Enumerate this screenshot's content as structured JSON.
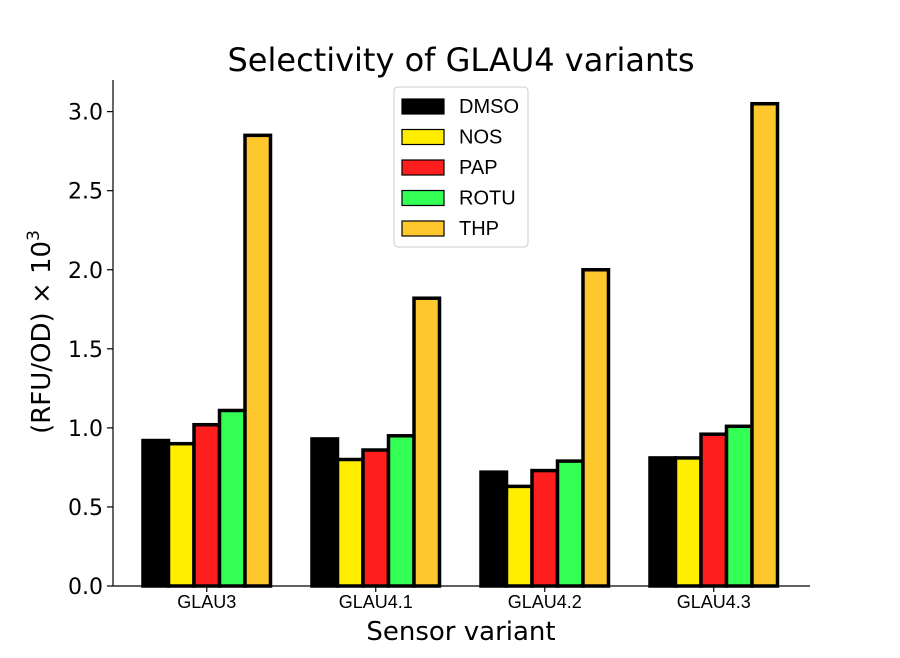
{
  "chart_data": {
    "type": "bar",
    "title": "Selectivity of GLAU4 variants",
    "xlabel": "Sensor variant",
    "ylabel": "(RFU/OD) × 10³",
    "ylabel_parts": {
      "base": "(RFU/OD) × 10",
      "sup": "3"
    },
    "ylim": [
      0,
      3.2
    ],
    "yticks": [
      "0.0",
      "0.5",
      "1.0",
      "1.5",
      "2.0",
      "2.5",
      "3.0"
    ],
    "categories": [
      "GLAU3",
      "GLAU4.1",
      "GLAU4.2",
      "GLAU4.3"
    ],
    "legend_position": "upper-center",
    "grid": false,
    "series": [
      {
        "name": "DMSO",
        "color": "#000000",
        "values": [
          0.92,
          0.93,
          0.72,
          0.81
        ]
      },
      {
        "name": "NOS",
        "color": "#ffee00",
        "values": [
          0.9,
          0.8,
          0.63,
          0.81
        ]
      },
      {
        "name": "PAP",
        "color": "#ff1e1e",
        "values": [
          1.02,
          0.86,
          0.73,
          0.96
        ]
      },
      {
        "name": "ROTU",
        "color": "#33ff55",
        "values": [
          1.11,
          0.95,
          0.79,
          1.01
        ]
      },
      {
        "name": "THP",
        "color": "#ffc72e",
        "values": [
          2.85,
          1.82,
          2.0,
          3.05
        ]
      }
    ]
  }
}
